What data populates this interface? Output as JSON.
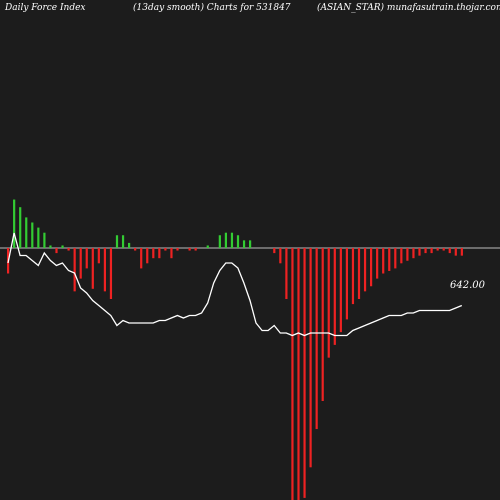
{
  "header": {
    "left": "Daily Force  Index",
    "center": "(13day smooth) Charts for 531847",
    "right": "(ASIAN_STAR) munafasutrain.thojar.com"
  },
  "chart_data": {
    "type": "bar",
    "title": "(13day smooth) Charts for 531847",
    "ylim": [
      -100,
      20
    ],
    "colors": {
      "positive": "#33cc33",
      "negative": "#ee2222",
      "line": "#ffffff",
      "zero_line": "#bbbbbb",
      "background": "#1c1c1c"
    },
    "values": [
      -10,
      19,
      16,
      12,
      10,
      8,
      6,
      1,
      -2,
      1,
      -1,
      -17,
      -12,
      -8,
      -16,
      -6,
      -17,
      -20,
      5,
      5,
      2,
      -1,
      -8,
      -6,
      -4,
      -4,
      -1,
      -4,
      -1,
      0,
      -1,
      -1,
      0,
      1,
      0,
      5,
      6,
      6,
      5,
      3,
      3,
      0,
      0,
      0,
      -2,
      -6,
      -20,
      -99,
      -99,
      -98,
      -86,
      -71,
      -60,
      -43,
      -38,
      -33,
      -28,
      -22,
      -20,
      -17,
      -15,
      -12,
      -10,
      -9,
      -8,
      -6,
      -5,
      -4,
      -3,
      -2,
      -2,
      -1,
      -1,
      -2,
      -3,
      -3
    ],
    "line": [
      34,
      46,
      37,
      37,
      35,
      33,
      38,
      35,
      33,
      34,
      31,
      30,
      24,
      22,
      19,
      17,
      15,
      13,
      9,
      11,
      10,
      10,
      10,
      10,
      10,
      11,
      11,
      12,
      13,
      12,
      13,
      13,
      14,
      18,
      26,
      31,
      34,
      34,
      32,
      26,
      19,
      10,
      7,
      7,
      9,
      6,
      6,
      5,
      6,
      5,
      6,
      6,
      6,
      6,
      5,
      5,
      5,
      7,
      8,
      9,
      10,
      11,
      12,
      13,
      13,
      13,
      14,
      14,
      15,
      15,
      15,
      15,
      15,
      15,
      16,
      17
    ],
    "last_value_label": "642.00"
  }
}
